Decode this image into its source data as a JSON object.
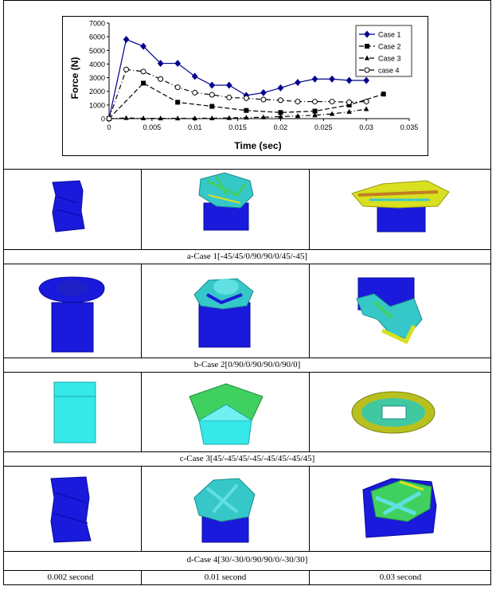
{
  "chart_data": {
    "type": "line",
    "title": "",
    "xlabel": "Time (sec)",
    "ylabel": "Force (N)",
    "xlim": [
      0,
      0.035
    ],
    "ylim": [
      0,
      7000
    ],
    "xticks": [
      "0",
      "0.005",
      "0.01",
      "0.015",
      "0.02",
      "0.025",
      "0.03",
      "0.035"
    ],
    "yticks": [
      "0",
      "1000",
      "2000",
      "3000",
      "4000",
      "5000",
      "6000",
      "7000"
    ],
    "legend_position": "top-right",
    "series": [
      {
        "name": "Case 1",
        "marker": "diamond",
        "line": "solid",
        "color": "#00008b",
        "x": [
          0,
          0.002,
          0.004,
          0.006,
          0.008,
          0.01,
          0.012,
          0.014,
          0.016,
          0.018,
          0.02,
          0.022,
          0.024,
          0.026,
          0.028,
          0.03
        ],
        "y": [
          0,
          5800,
          5300,
          4050,
          4050,
          3100,
          2450,
          2450,
          1700,
          1900,
          2250,
          2650,
          2900,
          2900,
          2800,
          2800
        ]
      },
      {
        "name": "Case 2",
        "marker": "square",
        "line": "dash",
        "color": "#000000",
        "x": [
          0,
          0.004,
          0.008,
          0.012,
          0.016,
          0.02,
          0.024,
          0.028,
          0.032
        ],
        "y": [
          0,
          2600,
          1200,
          900,
          600,
          450,
          550,
          1000,
          1800
        ]
      },
      {
        "name": "Case 3",
        "marker": "triangle",
        "line": "dashdot",
        "color": "#000000",
        "x": [
          0,
          0.002,
          0.004,
          0.006,
          0.008,
          0.01,
          0.012,
          0.014,
          0.016,
          0.018,
          0.02,
          0.022,
          0.024,
          0.026,
          0.028,
          0.03
        ],
        "y": [
          0,
          50,
          30,
          20,
          20,
          30,
          30,
          50,
          80,
          100,
          150,
          200,
          250,
          350,
          500,
          700
        ]
      },
      {
        "name": "case 4",
        "marker": "circle-open",
        "line": "dashdot",
        "color": "#000000",
        "x": [
          0,
          0.002,
          0.004,
          0.006,
          0.008,
          0.01,
          0.012,
          0.014,
          0.016,
          0.018,
          0.02,
          0.022,
          0.024,
          0.026,
          0.028,
          0.03
        ],
        "y": [
          0,
          3600,
          3450,
          2900,
          2300,
          1900,
          1750,
          1550,
          1500,
          1400,
          1350,
          1250,
          1250,
          1250,
          1200,
          1250
        ]
      }
    ]
  },
  "captions": {
    "case1": "a-Case 1[-45/45/0/90/90/0/45/-45]",
    "case2": "b-Case 2[0/90/0/90/90/0/90/0]",
    "case3": "c-Case 3[45/-45/45/-45/-45/45/-45/45]",
    "case4": "d-Case 4[30/-30/0/90/90/0/-30/30]"
  },
  "times": [
    "0.002 second",
    "0.01 second",
    "0.03 second"
  ],
  "colors": {
    "blue": "#1a1adc",
    "cyan": "#36e8e8",
    "yellow": "#d8e020",
    "green": "#40d060"
  }
}
